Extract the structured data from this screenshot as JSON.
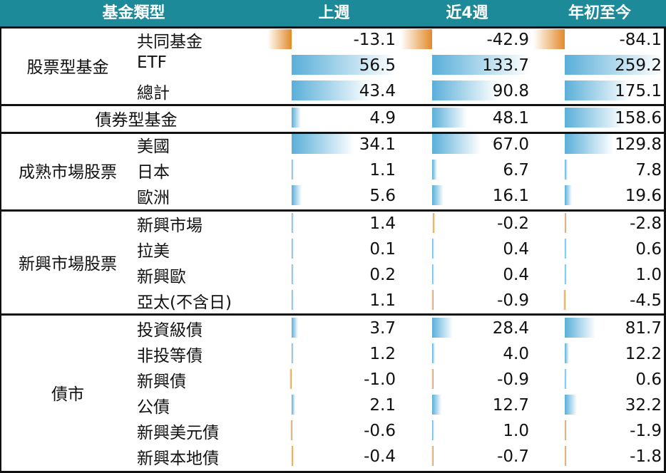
{
  "header": {
    "category": "基金類型",
    "week": "上週",
    "four_weeks": "近4週",
    "ytd": "年初至今"
  },
  "colors": {
    "header_bg": "#1d8a99",
    "positive_bar": "#5aafd9",
    "negative_bar": "#e28a2b"
  },
  "chart_data": {
    "type": "table",
    "columns": [
      "上週",
      "近4週",
      "年初至今"
    ],
    "groups": [
      {
        "name": "股票型基金",
        "rows": [
          {
            "label": "共同基金",
            "values": [
              "-13.1",
              "-42.9",
              "-84.1"
            ]
          },
          {
            "label": "ETF",
            "values": [
              "56.5",
              "133.7",
              "259.2"
            ]
          },
          {
            "label": "總計",
            "values": [
              "43.4",
              "90.8",
              "175.1"
            ]
          }
        ]
      },
      {
        "name": "債券型基金",
        "rows": [
          {
            "label": "",
            "values": [
              "4.9",
              "48.1",
              "158.6"
            ]
          }
        ]
      },
      {
        "name": "成熟市場股票",
        "rows": [
          {
            "label": "美國",
            "values": [
              "34.1",
              "67.0",
              "129.8"
            ]
          },
          {
            "label": "日本",
            "values": [
              "1.1",
              "6.7",
              "7.8"
            ]
          },
          {
            "label": "歐洲",
            "values": [
              "5.6",
              "16.1",
              "19.6"
            ]
          }
        ]
      },
      {
        "name": "新興市場股票",
        "rows": [
          {
            "label": "新興市場",
            "values": [
              "1.4",
              "-0.2",
              "-2.8"
            ]
          },
          {
            "label": "拉美",
            "values": [
              "0.1",
              "0.4",
              "0.6"
            ]
          },
          {
            "label": "新興歐",
            "values": [
              "0.2",
              "0.4",
              "1.0"
            ]
          },
          {
            "label": "亞太(不含日)",
            "values": [
              "1.1",
              "-0.9",
              "-4.5"
            ]
          }
        ]
      },
      {
        "name": "債市",
        "rows": [
          {
            "label": "投資級債",
            "values": [
              "3.7",
              "28.4",
              "81.7"
            ]
          },
          {
            "label": "非投等債",
            "values": [
              "1.2",
              "4.0",
              "12.2"
            ]
          },
          {
            "label": "新興債",
            "values": [
              "-1.0",
              "-0.9",
              "0.6"
            ]
          },
          {
            "label": "公債",
            "values": [
              "2.1",
              "12.7",
              "32.2"
            ]
          },
          {
            "label": "新興美元債",
            "values": [
              "-0.6",
              "1.0",
              "-1.9"
            ]
          },
          {
            "label": "新興本地債",
            "values": [
              "-0.4",
              "-0.7",
              "-1.8"
            ]
          }
        ]
      }
    ]
  }
}
